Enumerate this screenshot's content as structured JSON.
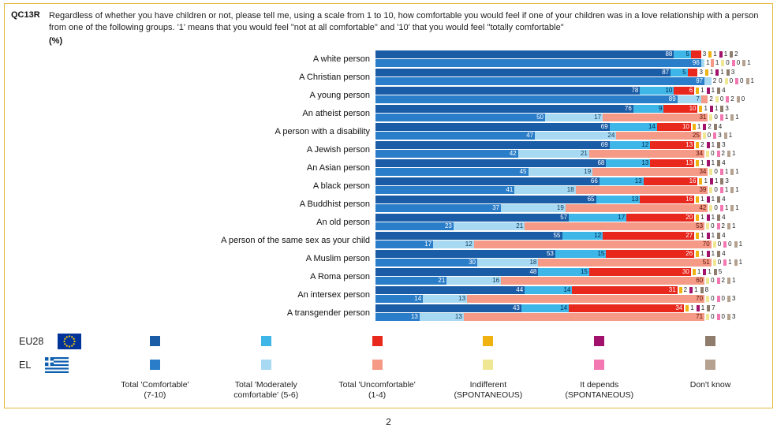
{
  "page": {
    "number": "2"
  },
  "question": {
    "code": "QC13R",
    "text": "Regardless of whether you have children or not, please tell me, using a scale from 1 to 10, how comfortable you would feel if one of your children was in a love relationship with a person from one of the following groups. '1' means that you would feel \"not at all comfortable\" and '10' that you would feel \"totally comfortable\"",
    "unit": "(%)"
  },
  "legend": {
    "rows": [
      {
        "label": "EU28",
        "flag": "eu-flag-icon"
      },
      {
        "label": "EL",
        "flag": "greece-flag-icon"
      }
    ],
    "columns": [
      {
        "lines": [
          "Total 'Comfortable'",
          "(7-10)"
        ]
      },
      {
        "lines": [
          "Total 'Moderately",
          "comfortable' (5-6)"
        ]
      },
      {
        "lines": [
          "Total 'Uncomfortable'",
          "(1-4)"
        ]
      },
      {
        "lines": [
          "Indifferent",
          "(SPONTANEOUS)"
        ]
      },
      {
        "lines": [
          "It depends",
          "(SPONTANEOUS)"
        ]
      },
      {
        "lines": [
          "Don't know"
        ]
      }
    ]
  },
  "colors": {
    "frame_border": "#e5b93c",
    "eu28": [
      "#1b5ca6",
      "#3fb6e8",
      "#e8271d",
      "#efb211",
      "#a2116b",
      "#8e7d6d"
    ],
    "el": [
      "#2a7dc8",
      "#a8d9f2",
      "#f59a86",
      "#f0e794",
      "#f378b1",
      "#b5a190"
    ],
    "eu28_text": [
      "#ffffff",
      "#00284d",
      "#ffffff",
      "#3a2c00",
      "#ffffff",
      "#ffffff"
    ],
    "el_text": [
      "#ffffff",
      "#0d3a5c",
      "#5a1208",
      "#4a4200",
      "#5c0a33",
      "#ffffff"
    ]
  },
  "chart_data": {
    "type": "bar",
    "stacked": true,
    "orientation": "horizontal",
    "xlim": [
      0,
      100
    ],
    "unit": "%",
    "legend_position": "bottom",
    "segment_labels": [
      "Total 'Comfortable' (7-10)",
      "Total 'Moderately comfortable' (5-6)",
      "Total 'Uncomfortable' (1-4)",
      "Indifferent (SPONTANEOUS)",
      "It depends (SPONTANEOUS)",
      "Don't know"
    ],
    "categories": [
      "A white person",
      "A Christian person",
      "A young person",
      "An atheist person",
      "A person with a disability",
      "A Jewish person",
      "An Asian person",
      "A black person",
      "A Buddhist person",
      "An old person",
      "A person of the same sex as your child",
      "A Muslim person",
      "A Roma person",
      "An intersex person",
      "A transgender person"
    ],
    "series": [
      {
        "name": "EU28",
        "values": [
          [
            88,
            5,
            3,
            1,
            1,
            2
          ],
          [
            87,
            5,
            3,
            1,
            1,
            3
          ],
          [
            78,
            10,
            6,
            1,
            1,
            4
          ],
          [
            76,
            9,
            10,
            1,
            1,
            3
          ],
          [
            69,
            14,
            10,
            1,
            2,
            4
          ],
          [
            69,
            12,
            13,
            2,
            1,
            3
          ],
          [
            68,
            13,
            13,
            1,
            1,
            4
          ],
          [
            66,
            13,
            16,
            1,
            1,
            3
          ],
          [
            65,
            13,
            16,
            1,
            1,
            4
          ],
          [
            57,
            17,
            20,
            1,
            1,
            4
          ],
          [
            55,
            12,
            27,
            1,
            1,
            4
          ],
          [
            53,
            15,
            26,
            1,
            1,
            4
          ],
          [
            48,
            15,
            30,
            1,
            1,
            5
          ],
          [
            44,
            14,
            31,
            2,
            1,
            8
          ],
          [
            43,
            14,
            34,
            1,
            1,
            7
          ]
        ]
      },
      {
        "name": "EL",
        "values": [
          [
            96,
            1,
            1,
            0,
            0,
            1
          ],
          [
            97,
            2,
            0,
            0,
            0,
            1
          ],
          [
            89,
            7,
            2,
            0,
            2,
            0
          ],
          [
            50,
            17,
            31,
            0,
            1,
            1
          ],
          [
            47,
            24,
            25,
            0,
            3,
            1
          ],
          [
            42,
            21,
            34,
            0,
            2,
            1
          ],
          [
            45,
            19,
            34,
            0,
            1,
            1
          ],
          [
            41,
            18,
            39,
            0,
            1,
            1
          ],
          [
            37,
            19,
            42,
            0,
            1,
            1
          ],
          [
            23,
            21,
            53,
            0,
            2,
            1
          ],
          [
            17,
            12,
            70,
            0,
            0,
            1
          ],
          [
            30,
            18,
            51,
            0,
            1,
            1
          ],
          [
            21,
            16,
            60,
            0,
            2,
            1
          ],
          [
            14,
            13,
            70,
            0,
            0,
            3
          ],
          [
            13,
            13,
            71,
            0,
            0,
            3
          ]
        ]
      }
    ]
  }
}
